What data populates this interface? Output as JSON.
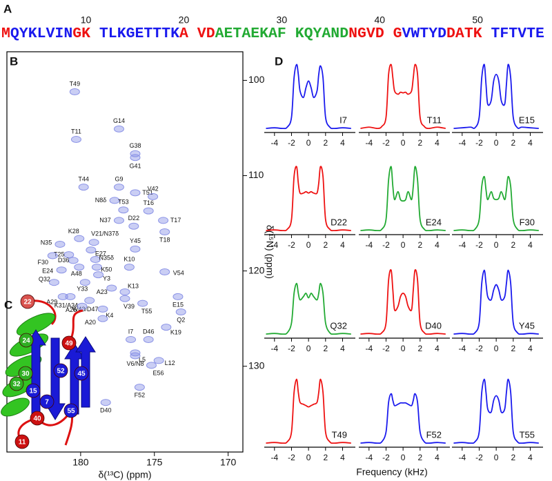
{
  "panel_labels": [
    "A",
    "B",
    "C",
    "D"
  ],
  "residue_numbers": [
    10,
    20,
    30,
    40,
    50
  ],
  "sequence_groups": [
    [
      {
        "text": "M",
        "color": "#ee1111"
      },
      {
        "text": "QYKLVIN",
        "color": "#1a1aee"
      },
      {
        "text": "GK",
        "color": "#ee1111"
      }
    ],
    [
      {
        "text": "TLKGETTTK",
        "color": "#1a1aee"
      },
      {
        "text": "A",
        "color": "#ee1111"
      }
    ],
    [
      {
        "text": "VD",
        "color": "#ee1111"
      },
      {
        "text": "AETAEKAF",
        "color": "#22aa33"
      }
    ],
    [
      {
        "text": "KQYAND",
        "color": "#22aa33"
      },
      {
        "text": "NGVD",
        "color": "#ee1111"
      }
    ],
    [
      {
        "text": "G",
        "color": "#ee1111"
      },
      {
        "text": "VWTYD",
        "color": "#1a1aee"
      },
      {
        "text": "DATK",
        "color": "#ee1111"
      }
    ],
    [
      {
        "text": "TFTVTE",
        "color": "#1a1aee"
      }
    ]
  ],
  "structure_labels": [
    {
      "text": "22",
      "color": "#d9534f"
    },
    {
      "text": "24",
      "color": "#2fae22"
    },
    {
      "text": "30",
      "color": "#2fae22"
    },
    {
      "text": "32",
      "color": "#2fae22"
    },
    {
      "text": "15",
      "color": "#1a1ad6"
    },
    {
      "text": "7",
      "color": "#1a1ad6"
    },
    {
      "text": "52",
      "color": "#1a1ad6"
    },
    {
      "text": "45",
      "color": "#1a1ad6"
    },
    {
      "text": "49",
      "color": "#cc1111"
    },
    {
      "text": "40",
      "color": "#cc1111"
    },
    {
      "text": "55",
      "color": "#1a1ad6"
    },
    {
      "text": "11",
      "color": "#cc1111"
    }
  ],
  "chart_data": [
    {
      "type": "scatter",
      "xlabel": "δ(¹³C) (ppm)",
      "ylabel": "δ(¹⁵N) (ppm)",
      "color": "#8a92e6",
      "xlim": [
        185,
        169
      ],
      "ylim": [
        139,
        97
      ],
      "xticks": [
        180,
        175,
        170
      ],
      "yticks": [
        100,
        110,
        120,
        130
      ],
      "point_labels": [
        "T49",
        "T11",
        "G14",
        "G38",
        "G41",
        "T44",
        "G9",
        "T51",
        "V42",
        "N8δ",
        "T53",
        "T16",
        "N37",
        "D22",
        "T17",
        "T18",
        "K28",
        "V21/N37δ",
        "N35",
        "Y45",
        "E27",
        "T25",
        "F30",
        "D36",
        "N35δ",
        "K50",
        "K10",
        "V54",
        "E24",
        "A48",
        "Y3",
        "Q32",
        "Y33",
        "A23",
        "K13",
        "A29",
        "K31/A34",
        "V39",
        "W43/D47",
        "E15",
        "T55",
        "A26",
        "K4",
        "Q2",
        "A20",
        "K19",
        "I7",
        "D46",
        "L5",
        "V6/N8",
        "L12",
        "E56",
        "F52",
        "D40"
      ],
      "x": [
        180.4,
        180.3,
        177.4,
        176.3,
        176.3,
        179.8,
        177.4,
        176.3,
        175.1,
        177.7,
        177.1,
        175.4,
        177.4,
        176.4,
        174.4,
        174.3,
        180.1,
        179.1,
        181.4,
        176.3,
        179.3,
        180.8,
        181.9,
        180.5,
        179.0,
        178.9,
        176.7,
        174.3,
        181.3,
        180.1,
        178.8,
        181.8,
        179.7,
        177.9,
        177.0,
        181.2,
        180.7,
        177.0,
        179.4,
        173.4,
        175.8,
        179.9,
        178.5,
        173.2,
        178.5,
        174.2,
        176.6,
        175.4,
        176.3,
        176.3,
        174.7,
        175.2,
        176.0,
        178.3
      ],
      "values": [
        101.2,
        106.2,
        105.1,
        107.7,
        108.1,
        111.2,
        111.2,
        111.8,
        112.2,
        112.6,
        113.6,
        113.7,
        114.7,
        115.3,
        114.7,
        115.9,
        116.6,
        117.0,
        117.2,
        117.7,
        117.8,
        118.3,
        118.4,
        118.9,
        118.8,
        119.6,
        119.6,
        120.1,
        119.9,
        119.6,
        120.4,
        121.2,
        121.2,
        121.8,
        122.2,
        122.7,
        122.7,
        122.9,
        123.1,
        122.7,
        123.4,
        123.7,
        124.0,
        124.3,
        125.0,
        125.9,
        127.2,
        127.2,
        128.6,
        128.9,
        129.4,
        129.9,
        132.2,
        133.8
      ]
    },
    {
      "type": "line",
      "title": "I7",
      "color": "#1a1aee",
      "xlim": [
        -5.2,
        5.5
      ],
      "ylim": [
        0,
        1.1
      ],
      "xticks": [
        -4,
        -2,
        0,
        2,
        4
      ],
      "x": [
        -5,
        -4,
        -3,
        -2.5,
        -2,
        -1.7,
        -1.4,
        -1.2,
        -1,
        -0.6,
        -0.3,
        0,
        0.3,
        0.6,
        1,
        1.2,
        1.4,
        1.7,
        2,
        2.5,
        3,
        4,
        5
      ],
      "values": [
        0.03,
        0.04,
        0.03,
        0.05,
        0.2,
        0.8,
        1.0,
        0.85,
        0.6,
        0.5,
        0.65,
        0.75,
        0.65,
        0.5,
        0.6,
        0.85,
        0.98,
        0.8,
        0.2,
        0.05,
        0.03,
        0.04,
        0.03
      ]
    },
    {
      "type": "line",
      "title": "T11",
      "color": "#ee1111",
      "xlim": [
        -5.2,
        5.5
      ],
      "ylim": [
        0,
        1.1
      ],
      "xticks": [
        -4,
        -2,
        0,
        2,
        4
      ],
      "x": [
        -5,
        -4,
        -3,
        -2.5,
        -2,
        -1.7,
        -1.4,
        -1.2,
        -1,
        -0.6,
        -0.3,
        0,
        0.3,
        0.6,
        1,
        1.2,
        1.4,
        1.7,
        2,
        2.5,
        3,
        4,
        5
      ],
      "values": [
        0.03,
        0.05,
        0.03,
        0.06,
        0.2,
        0.85,
        1.0,
        0.8,
        0.6,
        0.55,
        0.58,
        0.57,
        0.58,
        0.55,
        0.6,
        0.8,
        1.0,
        0.85,
        0.2,
        0.06,
        0.03,
        0.05,
        0.03
      ]
    },
    {
      "type": "line",
      "title": "E15",
      "color": "#1a1aee",
      "xlim": [
        -5.2,
        5.5
      ],
      "ylim": [
        0,
        1.1
      ],
      "xticks": [
        -4,
        -2,
        0,
        2,
        4
      ],
      "x": [
        -5,
        -4,
        -3,
        -2.5,
        -2,
        -1.7,
        -1.4,
        -1.2,
        -1,
        -0.6,
        -0.3,
        0,
        0.3,
        0.6,
        1,
        1.2,
        1.4,
        1.7,
        2,
        2.5,
        3,
        4,
        5
      ],
      "values": [
        0.03,
        0.04,
        0.05,
        0.04,
        0.2,
        0.8,
        1.0,
        0.7,
        0.4,
        0.45,
        0.75,
        0.85,
        0.75,
        0.45,
        0.4,
        0.7,
        1.0,
        0.8,
        0.2,
        0.04,
        0.05,
        0.04,
        0.03
      ]
    },
    {
      "type": "line",
      "title": "D22",
      "color": "#ee1111",
      "xlim": [
        -5.2,
        5.5
      ],
      "ylim": [
        0,
        1.1
      ],
      "xticks": [
        -4,
        -2,
        0,
        2,
        4
      ],
      "x": [
        -5,
        -4,
        -3,
        -2.5,
        -2,
        -1.7,
        -1.4,
        -1.2,
        -1,
        -0.6,
        -0.3,
        0,
        0.3,
        0.6,
        1,
        1.2,
        1.4,
        1.7,
        2,
        2.5,
        3,
        4,
        5
      ],
      "values": [
        0.03,
        0.04,
        0.03,
        0.05,
        0.2,
        0.85,
        1.0,
        0.75,
        0.6,
        0.6,
        0.62,
        0.6,
        0.62,
        0.6,
        0.6,
        0.75,
        1.0,
        0.85,
        0.2,
        0.05,
        0.03,
        0.04,
        0.03
      ]
    },
    {
      "type": "line",
      "title": "E24",
      "color": "#22aa33",
      "xlim": [
        -5.2,
        5.5
      ],
      "ylim": [
        0,
        1.1
      ],
      "xticks": [
        -4,
        -2,
        0,
        2,
        4
      ],
      "x": [
        -5,
        -4,
        -3,
        -2.5,
        -2,
        -1.7,
        -1.4,
        -1.2,
        -1,
        -0.6,
        -0.3,
        0,
        0.3,
        0.6,
        1,
        1.2,
        1.4,
        1.7,
        2,
        2.5,
        3,
        4,
        5
      ],
      "values": [
        0.03,
        0.04,
        0.03,
        0.05,
        0.2,
        0.8,
        1.0,
        0.7,
        0.5,
        0.62,
        0.5,
        0.48,
        0.5,
        0.62,
        0.5,
        0.7,
        1.0,
        0.8,
        0.2,
        0.05,
        0.03,
        0.04,
        0.03
      ]
    },
    {
      "type": "line",
      "title": "F30",
      "color": "#22aa33",
      "xlim": [
        -5.2,
        5.5
      ],
      "ylim": [
        0,
        1.1
      ],
      "xticks": [
        -4,
        -2,
        0,
        2,
        4
      ],
      "x": [
        -5,
        -4,
        -3,
        -2.5,
        -2,
        -1.7,
        -1.4,
        -1.2,
        -1,
        -0.6,
        -0.3,
        0,
        0.3,
        0.6,
        1,
        1.2,
        1.4,
        1.7,
        2,
        2.5,
        3,
        4,
        5
      ],
      "values": [
        0.03,
        0.04,
        0.03,
        0.05,
        0.2,
        0.7,
        0.85,
        0.65,
        0.5,
        0.62,
        0.52,
        0.5,
        0.52,
        0.62,
        0.5,
        0.65,
        0.85,
        0.7,
        0.2,
        0.05,
        0.03,
        0.04,
        0.03
      ]
    },
    {
      "type": "line",
      "title": "Q32",
      "color": "#22aa33",
      "xlim": [
        -5.2,
        5.5
      ],
      "ylim": [
        0,
        1.1
      ],
      "xticks": [
        -4,
        -2,
        0,
        2,
        4
      ],
      "x": [
        -5,
        -4,
        -3,
        -2.5,
        -2,
        -1.7,
        -1.4,
        -1.2,
        -1,
        -0.6,
        -0.3,
        0,
        0.3,
        0.6,
        1,
        1.2,
        1.4,
        1.7,
        2,
        2.5,
        3,
        4,
        5
      ],
      "values": [
        0.03,
        0.04,
        0.03,
        0.05,
        0.2,
        0.65,
        0.8,
        0.65,
        0.55,
        0.6,
        0.65,
        0.58,
        0.65,
        0.6,
        0.55,
        0.65,
        0.8,
        0.65,
        0.2,
        0.05,
        0.03,
        0.04,
        0.03
      ]
    },
    {
      "type": "line",
      "title": "D40",
      "color": "#ee1111",
      "xlim": [
        -5.2,
        5.5
      ],
      "ylim": [
        0,
        1.1
      ],
      "xticks": [
        -4,
        -2,
        0,
        2,
        4
      ],
      "x": [
        -5,
        -4,
        -3,
        -2.5,
        -2,
        -1.7,
        -1.4,
        -1.2,
        -1,
        -0.6,
        -0.3,
        0,
        0.3,
        0.6,
        1,
        1.2,
        1.4,
        1.7,
        2,
        2.5,
        3,
        4,
        5
      ],
      "values": [
        0.03,
        0.04,
        0.03,
        0.05,
        0.2,
        0.85,
        1.0,
        0.7,
        0.4,
        0.45,
        0.6,
        0.65,
        0.6,
        0.45,
        0.4,
        0.7,
        1.0,
        0.85,
        0.2,
        0.05,
        0.03,
        0.04,
        0.03
      ]
    },
    {
      "type": "line",
      "title": "Y45",
      "color": "#1a1aee",
      "xlim": [
        -5.2,
        5.5
      ],
      "ylim": [
        0,
        1.1
      ],
      "xticks": [
        -4,
        -2,
        0,
        2,
        4
      ],
      "x": [
        -5,
        -4,
        -3,
        -2.5,
        -2,
        -1.7,
        -1.4,
        -1.2,
        -1,
        -0.6,
        -0.3,
        0,
        0.3,
        0.6,
        1,
        1.2,
        1.4,
        1.7,
        2,
        2.5,
        3,
        4,
        5
      ],
      "values": [
        0.03,
        0.04,
        0.03,
        0.05,
        0.2,
        0.8,
        1.0,
        0.8,
        0.6,
        0.55,
        0.7,
        0.78,
        0.7,
        0.55,
        0.6,
        0.8,
        1.0,
        0.8,
        0.2,
        0.05,
        0.03,
        0.04,
        0.03
      ]
    },
    {
      "type": "line",
      "title": "T49",
      "color": "#ee1111",
      "xlim": [
        -5.2,
        5.5
      ],
      "ylim": [
        0,
        1.1
      ],
      "xticks": [
        -4,
        -2,
        0,
        2,
        4
      ],
      "x": [
        -5,
        -4,
        -3,
        -2.5,
        -2,
        -1.7,
        -1.4,
        -1.2,
        -1,
        -0.6,
        -0.3,
        0,
        0.3,
        0.6,
        1,
        1.2,
        1.4,
        1.7,
        2,
        2.5,
        3,
        4,
        5
      ],
      "values": [
        0.03,
        0.04,
        0.03,
        0.05,
        0.2,
        0.8,
        1.0,
        0.8,
        0.65,
        0.62,
        0.6,
        0.58,
        0.6,
        0.62,
        0.65,
        0.8,
        1.0,
        0.8,
        0.2,
        0.05,
        0.03,
        0.04,
        0.03
      ]
    },
    {
      "type": "line",
      "title": "F52",
      "color": "#1a1aee",
      "xlim": [
        -5.2,
        5.5
      ],
      "ylim": [
        0,
        1.1
      ],
      "xticks": [
        -4,
        -2,
        0,
        2,
        4
      ],
      "xlabel": "Frequency (kHz)",
      "x": [
        -5,
        -4,
        -3,
        -2.5,
        -2,
        -1.7,
        -1.4,
        -1.2,
        -1,
        -0.6,
        -0.3,
        0,
        0.3,
        0.6,
        1,
        1.2,
        1.4,
        1.7,
        2,
        2.5,
        3,
        4,
        5
      ],
      "values": [
        0.03,
        0.04,
        0.03,
        0.05,
        0.2,
        0.65,
        0.78,
        0.68,
        0.6,
        0.62,
        0.64,
        0.64,
        0.64,
        0.62,
        0.6,
        0.68,
        0.78,
        0.65,
        0.2,
        0.05,
        0.03,
        0.04,
        0.03
      ]
    },
    {
      "type": "line",
      "title": "T55",
      "color": "#1a1aee",
      "xlim": [
        -5.2,
        5.5
      ],
      "ylim": [
        0,
        1.1
      ],
      "xticks": [
        -4,
        -2,
        0,
        2,
        4
      ],
      "x": [
        -5,
        -4,
        -3,
        -2.5,
        -2,
        -1.7,
        -1.4,
        -1.2,
        -1,
        -0.6,
        -0.3,
        0,
        0.3,
        0.6,
        1,
        1.2,
        1.4,
        1.7,
        2,
        2.5,
        3,
        4,
        5
      ],
      "values": [
        0.03,
        0.04,
        0.03,
        0.05,
        0.2,
        0.8,
        1.0,
        0.8,
        0.55,
        0.5,
        0.68,
        0.75,
        0.68,
        0.5,
        0.55,
        0.8,
        1.0,
        0.8,
        0.2,
        0.05,
        0.03,
        0.04,
        0.03
      ]
    }
  ]
}
